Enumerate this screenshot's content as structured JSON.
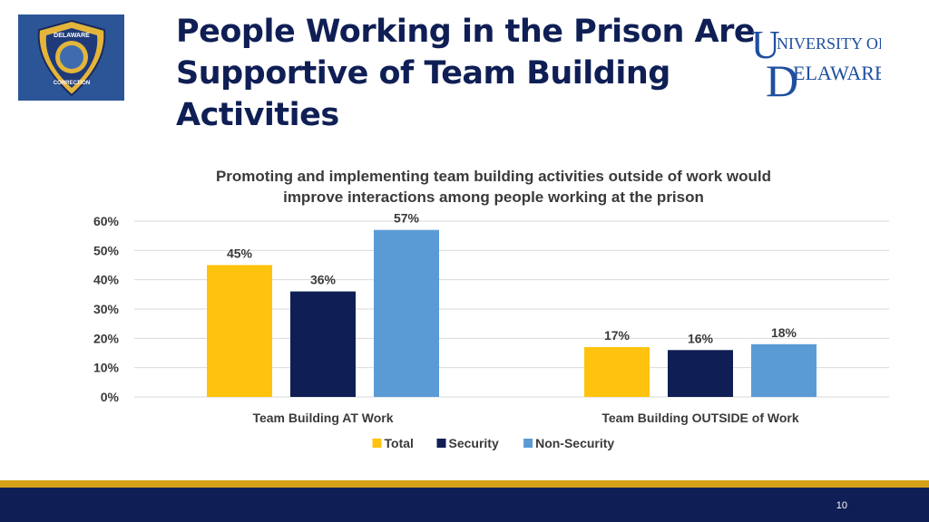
{
  "slide": {
    "title": "People Working in the Prison Are Supportive of Team Building Activities",
    "page_number": "10"
  },
  "logos": {
    "left_badge": {
      "top_text": "DELAWARE",
      "bottom_text": "CORRECTION"
    },
    "right_logo": {
      "line1": "NIVERSITY OF",
      "line2": "ELAWARE"
    }
  },
  "colors": {
    "title": "#0f1f55",
    "total": "#ffc20e",
    "security": "#0f1f55",
    "non_security": "#5b9bd5",
    "footer": "#0f1f55",
    "footer_stripe": "#d4a017"
  },
  "chart_data": {
    "type": "bar",
    "title": "Promoting and implementing team building activities outside of work would improve interactions among people working at the prison",
    "title_lines": [
      "Promoting and implementing team building activities outside of work would",
      "improve interactions among people working at the prison"
    ],
    "categories": [
      "Team Building AT Work",
      "Team Building OUTSIDE of Work"
    ],
    "series": [
      {
        "name": "Total",
        "values": [
          45,
          17
        ],
        "labels": [
          "45%",
          "17%"
        ]
      },
      {
        "name": "Security",
        "values": [
          36,
          16
        ],
        "labels": [
          "36%",
          "16%"
        ]
      },
      {
        "name": "Non-Security",
        "values": [
          57,
          18
        ],
        "labels": [
          "57%",
          "18%"
        ]
      }
    ],
    "ylim": [
      0,
      60
    ],
    "yticks": [
      0,
      10,
      20,
      30,
      40,
      50,
      60
    ],
    "ytick_labels": [
      "0%",
      "10%",
      "20%",
      "30%",
      "40%",
      "50%",
      "60%"
    ],
    "grid": true,
    "legend_position": "bottom"
  }
}
